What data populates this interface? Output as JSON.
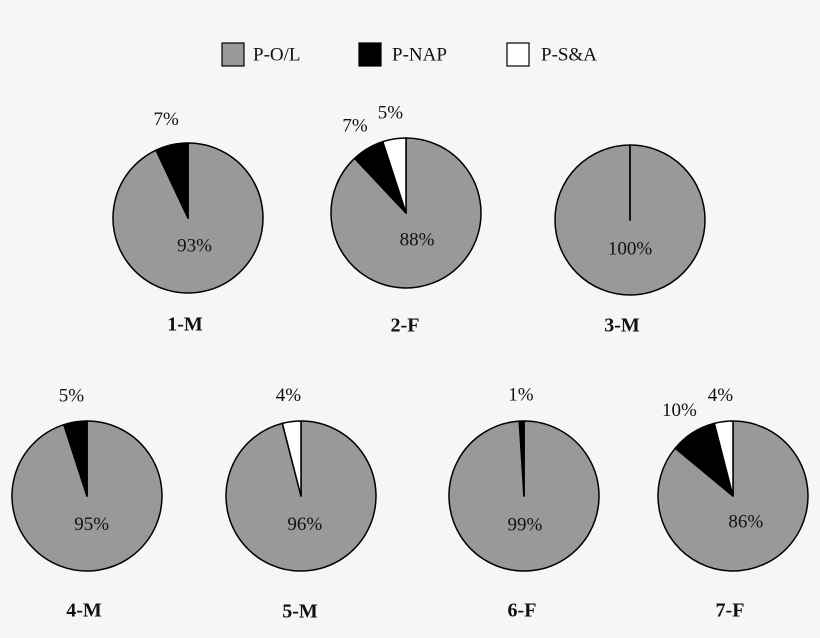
{
  "legend": {
    "labels": [
      "P-O/L",
      "P-NAP",
      "P-S&A"
    ],
    "colors": [
      "#999999",
      "#000000",
      "#ffffff"
    ]
  },
  "chart_data": [
    {
      "type": "pie",
      "title": "1-M",
      "values": [
        93,
        7,
        0
      ],
      "value_labels": [
        "93%",
        "7%",
        null
      ]
    },
    {
      "type": "pie",
      "title": "2-F",
      "values": [
        88,
        7,
        5
      ],
      "value_labels": [
        "88%",
        "7%",
        "5%"
      ]
    },
    {
      "type": "pie",
      "title": "3-M",
      "values": [
        100,
        0,
        0
      ],
      "value_labels": [
        "100%",
        null,
        null
      ]
    },
    {
      "type": "pie",
      "title": "4-M",
      "values": [
        95,
        5,
        0
      ],
      "value_labels": [
        "95%",
        "5%",
        null
      ]
    },
    {
      "type": "pie",
      "title": "5-M",
      "values": [
        96,
        0,
        4
      ],
      "value_labels": [
        "96%",
        null,
        "4%"
      ]
    },
    {
      "type": "pie",
      "title": "6-F",
      "values": [
        99,
        1,
        0
      ],
      "value_labels": [
        "99%",
        "1%",
        null
      ]
    },
    {
      "type": "pie",
      "title": "7-F",
      "values": [
        86,
        10,
        4
      ],
      "value_labels": [
        "86%",
        "10%",
        "4%"
      ]
    }
  ]
}
